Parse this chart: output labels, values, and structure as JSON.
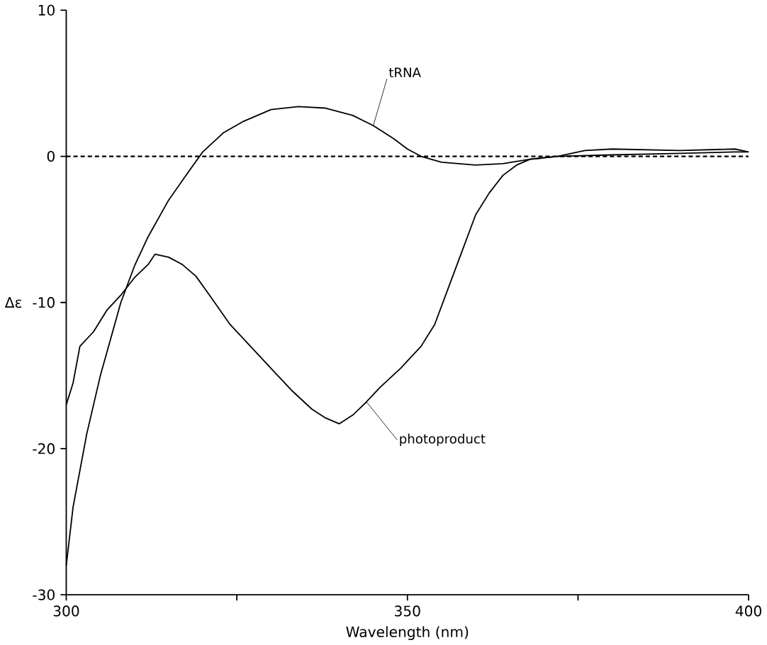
{
  "chart_data": {
    "type": "line",
    "xlabel": "Wavelength (nm)",
    "ylabel": "Δε",
    "xlim": [
      300,
      400
    ],
    "xticks": [
      300,
      {
        "value": 325,
        "label": null
      },
      350,
      {
        "value": 375,
        "label": null
      },
      400
    ],
    "ylim": [
      -30,
      10
    ],
    "yticks": [
      -30,
      -20,
      -10,
      0,
      10
    ],
    "grid": false,
    "marker": "none",
    "line_style": "solid",
    "ref_lines": [
      {
        "axis": "y",
        "value": 0,
        "line_style": "dashed",
        "color": "#000000"
      }
    ],
    "series": [
      {
        "name": "tRNA",
        "color": "#000000",
        "x": [
          300,
          301,
          303,
          305,
          308,
          310,
          312,
          315,
          318,
          320,
          323,
          326,
          330,
          334,
          338,
          342,
          345,
          348,
          350,
          352,
          355,
          360,
          364,
          368,
          372,
          380,
          390,
          398,
          400
        ],
        "values": [
          -28,
          -24,
          -19,
          -15,
          -10,
          -7.5,
          -5.5,
          -3,
          -1,
          0.3,
          1.6,
          2.4,
          3.2,
          3.4,
          3.3,
          2.8,
          2.1,
          1.2,
          0.5,
          0,
          -0.4,
          -0.6,
          -0.5,
          -0.2,
          0,
          0.1,
          0.2,
          0.3,
          0.3
        ]
      },
      {
        "name": "photoproduct",
        "color": "#000000",
        "x": [
          300,
          301,
          302,
          304,
          306,
          308,
          310,
          312,
          313,
          315,
          317,
          319,
          321,
          324,
          327,
          330,
          333,
          336,
          338,
          340,
          342,
          344,
          346,
          349,
          352,
          354,
          356,
          358,
          360,
          362,
          364,
          366,
          368,
          372,
          376,
          380,
          390,
          398,
          400
        ],
        "values": [
          -17,
          -15.5,
          -13,
          -12,
          -10.5,
          -9.5,
          -8.3,
          -7.4,
          -6.7,
          -6.9,
          -7.4,
          -8.2,
          -9.5,
          -11.5,
          -13,
          -14.5,
          -16,
          -17.3,
          -17.9,
          -18.3,
          -17.7,
          -16.8,
          -15.8,
          -14.5,
          -13,
          -11.5,
          -9,
          -6.5,
          -4,
          -2.5,
          -1.3,
          -0.6,
          -0.2,
          0,
          0.4,
          0.5,
          0.4,
          0.5,
          0.3
        ]
      }
    ]
  }
}
